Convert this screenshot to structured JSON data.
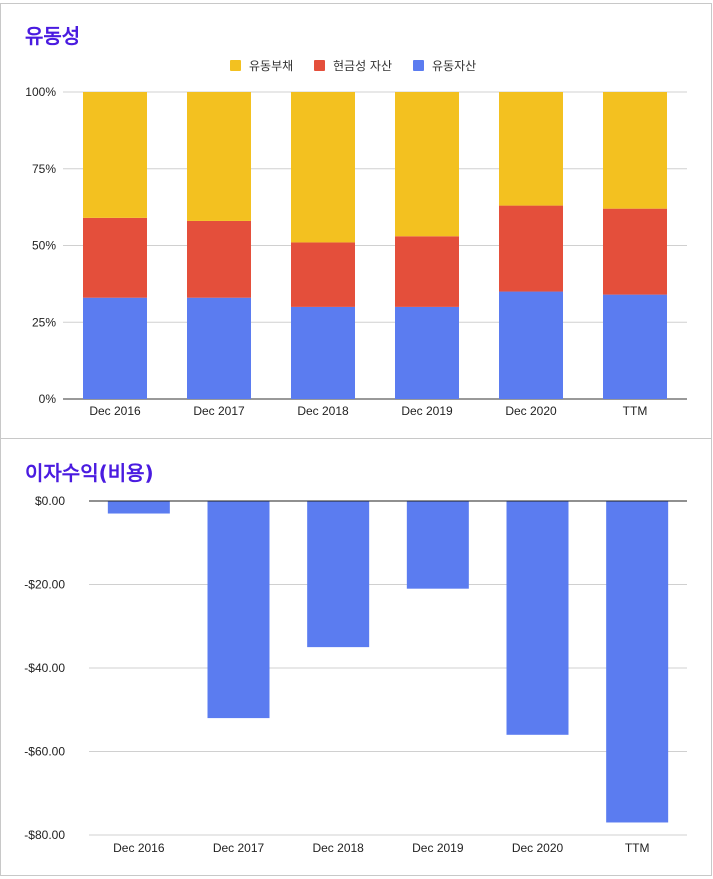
{
  "chart_data": [
    {
      "type": "bar",
      "stacked": true,
      "title": "유동성",
      "categories": [
        "Dec 2016",
        "Dec 2017",
        "Dec 2018",
        "Dec 2019",
        "Dec 2020",
        "TTM"
      ],
      "series": [
        {
          "name": "유동자산",
          "color": "#5b7cf0",
          "values": [
            33,
            33,
            30,
            30,
            35,
            34
          ]
        },
        {
          "name": "현금성 자산",
          "color": "#e44f3b",
          "values": [
            26,
            25,
            21,
            23,
            28,
            28
          ]
        },
        {
          "name": "유동부채",
          "color": "#f3c120",
          "values": [
            41,
            42,
            49,
            47,
            37,
            38
          ]
        }
      ],
      "legend_order": [
        "유동부채",
        "현금성 자산",
        "유동자산"
      ],
      "legend_position": "top",
      "yticks": [
        "0%",
        "25%",
        "50%",
        "75%",
        "100%"
      ],
      "ylim": [
        0,
        100
      ]
    },
    {
      "type": "bar",
      "title": "이자수익(비용)",
      "categories": [
        "Dec 2016",
        "Dec 2017",
        "Dec 2018",
        "Dec 2019",
        "Dec 2020",
        "TTM"
      ],
      "values": [
        -3,
        -52,
        -35,
        -21,
        -56,
        -77
      ],
      "color": "#5b7cf0",
      "yticks": [
        "$0.00",
        "-$20.00",
        "-$40.00",
        "-$60.00",
        "-$80.00"
      ],
      "ylim": [
        -80,
        0
      ]
    }
  ]
}
